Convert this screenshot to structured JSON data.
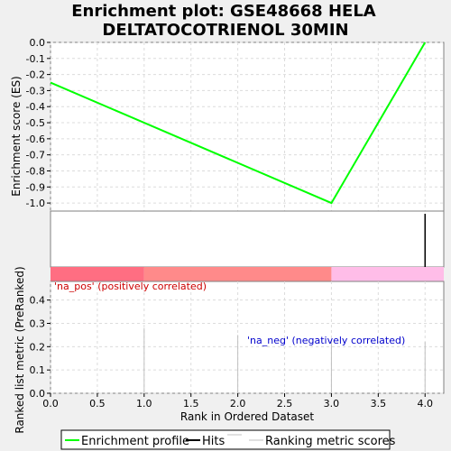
{
  "chart_data": {
    "type": "line",
    "title_line1": "Enrichment plot: GSE48668 HELA",
    "title_line2": "DELTATOCOTRIENOL 30MIN",
    "top_panel": {
      "ylabel": "Enrichment score (ES)",
      "ylim": [
        -1.05,
        0.0
      ],
      "yticks": [
        "0.0",
        "-0.1",
        "-0.2",
        "-0.3",
        "-0.4",
        "-0.5",
        "-0.6",
        "-0.7",
        "-0.8",
        "-0.9",
        "-1.0"
      ],
      "ytick_values": [
        0.0,
        -0.1,
        -0.2,
        -0.3,
        -0.4,
        -0.5,
        -0.6,
        -0.7,
        -0.8,
        -0.9,
        -1.0
      ],
      "series": [
        {
          "name": "Enrichment profile",
          "color": "#00ff00",
          "x": [
            0,
            3,
            4
          ],
          "y": [
            -0.25,
            -1.0,
            0.0
          ]
        }
      ]
    },
    "hits": {
      "x": [
        4
      ],
      "color": "#000000"
    },
    "color_band": [
      {
        "from": 0,
        "to": 1,
        "color": "#ff6e82"
      },
      {
        "from": 1,
        "to": 3,
        "color": "#ff8a8a"
      },
      {
        "from": 3,
        "to": 4.2,
        "color": "#ffbde8"
      }
    ],
    "bottom_panel": {
      "ylabel": "Ranked list metric (PreRanked)",
      "ylim": [
        0,
        0.48
      ],
      "yticks": [
        "0.0",
        "0.1",
        "0.2",
        "0.3",
        "0.4"
      ],
      "ytick_values": [
        0.0,
        0.1,
        0.2,
        0.3,
        0.4
      ],
      "bars": {
        "x": [
          1,
          2,
          3,
          4
        ],
        "values": [
          0.28,
          0.25,
          0.23,
          0.22
        ],
        "color": "#c0c0c0"
      },
      "pos_label": "'na_pos' (positively correlated)",
      "neg_label": "'na_neg' (negatively correlated)"
    },
    "xlabel": "Rank in Ordered Dataset",
    "xlim": [
      0,
      4.2
    ],
    "xticks": [
      "0.0",
      "0.5",
      "1.0",
      "1.5",
      "2.0",
      "2.5",
      "3.0",
      "3.5",
      "4.0"
    ],
    "xtick_values": [
      0,
      0.5,
      1.0,
      1.5,
      2.0,
      2.5,
      3.0,
      3.5,
      4.0
    ],
    "legend": {
      "placement": "bottom",
      "entries": [
        {
          "label": "Enrichment profile",
          "color": "#00ff00"
        },
        {
          "label": "Hits",
          "color": "#000000"
        },
        {
          "label": "Ranking metric scores",
          "color": "#c0c0c0"
        }
      ]
    },
    "grid": true
  }
}
